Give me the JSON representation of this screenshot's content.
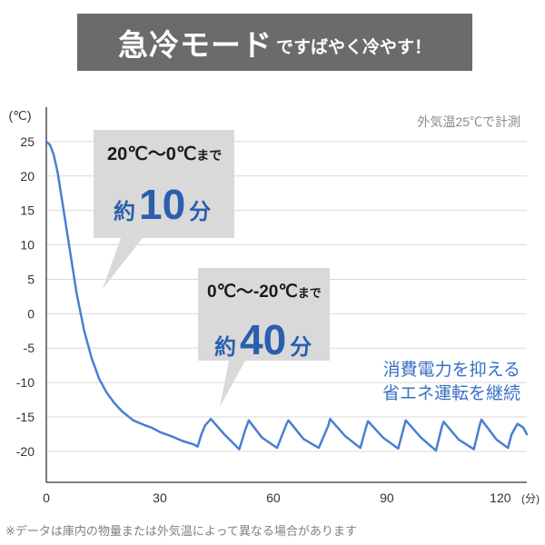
{
  "banner": {
    "title_big": "急冷モード",
    "title_small": "ですばやく冷やす！"
  },
  "colors": {
    "line": "#4a7fd0",
    "callout_bg": "#d9d9d9",
    "banner_bg": "#6b6b6b",
    "grid": "#d9d9d9",
    "text_blue": "#3a6fc4"
  },
  "chart_data": {
    "type": "line",
    "y_unit_label": "(℃)",
    "x_unit_label": "(分)",
    "condition_note": "外気温25℃で計測",
    "xlim": [
      0,
      127
    ],
    "ylim": [
      -24.5,
      30
    ],
    "x_ticks": [
      "0",
      "30",
      "60",
      "90",
      "120"
    ],
    "x_tick_values": [
      0,
      30,
      60,
      90,
      120
    ],
    "y_ticks": [
      "25",
      "20",
      "15",
      "10",
      "5",
      "0",
      "-5",
      "-10",
      "-15",
      "-20"
    ],
    "y_tick_values": [
      25,
      20,
      15,
      10,
      5,
      0,
      -5,
      -10,
      -15,
      -20
    ],
    "grid": "horizontal",
    "series": [
      {
        "x": [
          0,
          1,
          2,
          3,
          4,
          6,
          8,
          10,
          12,
          14,
          16,
          18,
          20,
          23,
          26,
          28,
          30,
          33,
          36,
          39,
          40,
          41,
          42,
          43.5,
          47,
          51,
          52.5,
          53.5,
          57,
          61,
          63.5,
          64,
          68,
          72,
          74.5,
          75,
          79,
          83,
          84.5,
          85,
          89,
          93,
          94.5,
          95,
          99,
          103,
          104.5,
          105,
          109,
          113,
          114.5,
          115,
          119,
          122,
          123,
          124.5,
          126,
          127
        ],
        "y": [
          25,
          24.5,
          23,
          20.5,
          17,
          10,
          3,
          -2.5,
          -6.5,
          -9.5,
          -11.5,
          -13,
          -14.2,
          -15.5,
          -16.2,
          -16.6,
          -17.2,
          -17.8,
          -18.5,
          -19,
          -19.3,
          -17.5,
          -16.2,
          -15.3,
          -17.5,
          -19.7,
          -17,
          -15.5,
          -18,
          -19.5,
          -16,
          -15.5,
          -18.2,
          -19.5,
          -16.3,
          -15.3,
          -17.8,
          -19.5,
          -16.5,
          -15.6,
          -18,
          -19.6,
          -16.5,
          -15.5,
          -18,
          -19.9,
          -16.5,
          -15.7,
          -18.3,
          -19.7,
          -16.3,
          -15.4,
          -18.3,
          -19.5,
          -17.5,
          -16,
          -16.5,
          -17.5
        ]
      }
    ],
    "annotations": [
      {
        "line1": "20℃〜0℃",
        "line1_suffix": "まで",
        "prefix": "約",
        "value": "10",
        "unit": "分"
      },
      {
        "line1": "0℃〜-20℃",
        "line1_suffix": "まで",
        "prefix": "約",
        "value": "40",
        "unit": "分"
      }
    ],
    "side_note": [
      "消費電力を抑える",
      "省エネ運転を継続"
    ]
  },
  "footnote": "※データは庫内の物量または外気温によって異なる場合があります"
}
